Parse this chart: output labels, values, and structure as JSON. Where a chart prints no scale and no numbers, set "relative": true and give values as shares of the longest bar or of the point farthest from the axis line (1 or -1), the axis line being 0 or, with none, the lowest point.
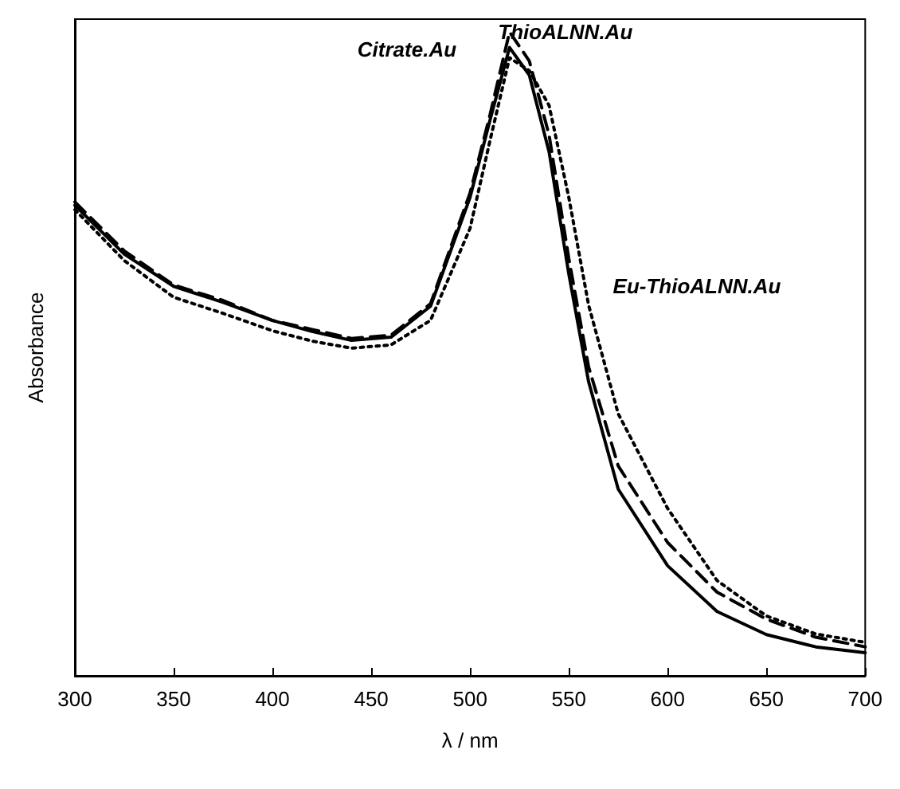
{
  "chart_data": {
    "type": "line",
    "relative": true,
    "xlabel": "λ / nm",
    "ylabel": "Absorbance",
    "xlim": [
      300,
      700
    ],
    "xticks": [
      300,
      350,
      400,
      450,
      500,
      550,
      600,
      650,
      700
    ],
    "grid": false,
    "marker": "none",
    "legend": false,
    "x": [
      300,
      325,
      350,
      375,
      400,
      420,
      440,
      460,
      480,
      500,
      510,
      520,
      530,
      540,
      550,
      560,
      575,
      600,
      625,
      650,
      675,
      700
    ],
    "series": [
      {
        "name": "Citrate.Au",
        "color": "#000000",
        "line_style": "solid",
        "values": [
          0.731,
          0.655,
          0.605,
          0.58,
          0.552,
          0.535,
          0.521,
          0.526,
          0.574,
          0.743,
          0.862,
          0.976,
          0.933,
          0.814,
          0.624,
          0.457,
          0.29,
          0.171,
          0.1,
          0.064,
          0.045,
          0.036
        ]
      },
      {
        "name": "ThioALNN.Au",
        "color": "#000000",
        "line_style": "dashed",
        "values": [
          0.736,
          0.66,
          0.607,
          0.583,
          0.552,
          0.538,
          0.524,
          0.529,
          0.578,
          0.75,
          0.87,
          1.0,
          0.955,
          0.84,
          0.648,
          0.48,
          0.326,
          0.207,
          0.13,
          0.088,
          0.06,
          0.045
        ]
      },
      {
        "name": "Eu-ThioALNN.Au",
        "color": "#000000",
        "line_style": "dotted",
        "values": [
          0.724,
          0.645,
          0.588,
          0.563,
          0.536,
          0.52,
          0.509,
          0.514,
          0.552,
          0.695,
          0.83,
          0.96,
          0.94,
          0.886,
          0.743,
          0.576,
          0.407,
          0.26,
          0.148,
          0.093,
          0.065,
          0.052
        ]
      }
    ]
  }
}
